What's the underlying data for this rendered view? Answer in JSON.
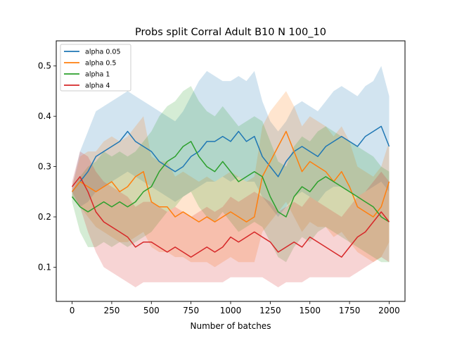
{
  "chart_data": {
    "type": "line",
    "title": "Probs split Corral Adult B10 N 100_10",
    "xlabel": "Number of batches",
    "ylabel": "",
    "xlim": [
      -100,
      2100
    ],
    "ylim": [
      0.032,
      0.55
    ],
    "xticks": [
      0,
      250,
      500,
      750,
      1000,
      1250,
      1500,
      1750,
      2000
    ],
    "xtick_labels": [
      "0",
      "250",
      "500",
      "750",
      "1000",
      "1250",
      "1500",
      "1750",
      "2000"
    ],
    "yticks": [
      0.1,
      0.2,
      0.3,
      0.4,
      0.5
    ],
    "ytick_labels": [
      "0.1",
      "0.2",
      "0.3",
      "0.4",
      "0.5"
    ],
    "grid": false,
    "legend_position": "top-left",
    "band": "shaded range around each series",
    "series": [
      {
        "name": "alpha 0.05",
        "color": "#1f77b4",
        "x": [
          0,
          50,
          100,
          150,
          200,
          250,
          300,
          350,
          400,
          450,
          500,
          550,
          600,
          650,
          700,
          750,
          800,
          850,
          900,
          950,
          1000,
          1050,
          1100,
          1150,
          1200,
          1250,
          1300,
          1350,
          1400,
          1450,
          1500,
          1550,
          1600,
          1650,
          1700,
          1750,
          1800,
          1850,
          1900,
          1950,
          2000
        ],
        "values": [
          0.25,
          0.27,
          0.29,
          0.32,
          0.33,
          0.34,
          0.35,
          0.37,
          0.35,
          0.34,
          0.33,
          0.31,
          0.3,
          0.29,
          0.3,
          0.32,
          0.33,
          0.35,
          0.35,
          0.36,
          0.35,
          0.37,
          0.35,
          0.36,
          0.32,
          0.3,
          0.28,
          0.31,
          0.33,
          0.34,
          0.33,
          0.32,
          0.34,
          0.35,
          0.36,
          0.35,
          0.34,
          0.36,
          0.37,
          0.38,
          0.34
        ],
        "lower": [
          0.24,
          0.22,
          0.23,
          0.25,
          0.26,
          0.27,
          0.28,
          0.29,
          0.28,
          0.27,
          0.26,
          0.25,
          0.24,
          0.23,
          0.24,
          0.25,
          0.26,
          0.27,
          0.27,
          0.28,
          0.27,
          0.28,
          0.27,
          0.27,
          0.24,
          0.22,
          0.2,
          0.22,
          0.24,
          0.25,
          0.24,
          0.23,
          0.25,
          0.26,
          0.26,
          0.25,
          0.24,
          0.25,
          0.26,
          0.27,
          0.25
        ],
        "upper": [
          0.26,
          0.33,
          0.37,
          0.41,
          0.42,
          0.43,
          0.44,
          0.45,
          0.44,
          0.43,
          0.42,
          0.41,
          0.4,
          0.39,
          0.41,
          0.44,
          0.47,
          0.49,
          0.48,
          0.47,
          0.47,
          0.48,
          0.47,
          0.49,
          0.43,
          0.39,
          0.37,
          0.39,
          0.42,
          0.43,
          0.42,
          0.41,
          0.43,
          0.45,
          0.46,
          0.45,
          0.44,
          0.46,
          0.47,
          0.5,
          0.44
        ]
      },
      {
        "name": "alpha 0.5",
        "color": "#ff7f0e",
        "x": [
          0,
          50,
          100,
          150,
          200,
          250,
          300,
          350,
          400,
          450,
          500,
          550,
          600,
          650,
          700,
          750,
          800,
          850,
          900,
          950,
          1000,
          1050,
          1100,
          1150,
          1200,
          1250,
          1300,
          1350,
          1400,
          1450,
          1500,
          1550,
          1600,
          1650,
          1700,
          1750,
          1800,
          1850,
          1900,
          1950,
          2000
        ],
        "values": [
          0.25,
          0.27,
          0.26,
          0.25,
          0.26,
          0.27,
          0.25,
          0.26,
          0.28,
          0.29,
          0.23,
          0.22,
          0.22,
          0.2,
          0.21,
          0.2,
          0.19,
          0.2,
          0.19,
          0.2,
          0.21,
          0.2,
          0.19,
          0.2,
          0.28,
          0.31,
          0.34,
          0.37,
          0.33,
          0.29,
          0.31,
          0.3,
          0.29,
          0.27,
          0.29,
          0.26,
          0.22,
          0.21,
          0.2,
          0.22,
          0.27
        ],
        "lower": [
          0.24,
          0.22,
          0.2,
          0.18,
          0.17,
          0.16,
          0.15,
          0.15,
          0.16,
          0.17,
          0.14,
          0.13,
          0.13,
          0.12,
          0.12,
          0.11,
          0.11,
          0.11,
          0.1,
          0.11,
          0.12,
          0.11,
          0.11,
          0.11,
          0.17,
          0.19,
          0.21,
          0.23,
          0.2,
          0.17,
          0.19,
          0.18,
          0.18,
          0.16,
          0.17,
          0.15,
          0.13,
          0.12,
          0.11,
          0.12,
          0.15
        ],
        "upper": [
          0.26,
          0.32,
          0.33,
          0.33,
          0.35,
          0.36,
          0.35,
          0.36,
          0.38,
          0.4,
          0.32,
          0.31,
          0.31,
          0.28,
          0.29,
          0.28,
          0.27,
          0.28,
          0.27,
          0.28,
          0.29,
          0.28,
          0.27,
          0.28,
          0.38,
          0.41,
          0.43,
          0.45,
          0.42,
          0.38,
          0.4,
          0.39,
          0.38,
          0.36,
          0.38,
          0.35,
          0.3,
          0.29,
          0.28,
          0.3,
          0.35
        ]
      },
      {
        "name": "alpha 1",
        "color": "#2ca02c",
        "x": [
          0,
          50,
          100,
          150,
          200,
          250,
          300,
          350,
          400,
          450,
          500,
          550,
          600,
          650,
          700,
          750,
          800,
          850,
          900,
          950,
          1000,
          1050,
          1100,
          1150,
          1200,
          1250,
          1300,
          1350,
          1400,
          1450,
          1500,
          1550,
          1600,
          1650,
          1700,
          1750,
          1800,
          1850,
          1900,
          1950,
          2000
        ],
        "values": [
          0.24,
          0.22,
          0.21,
          0.22,
          0.23,
          0.22,
          0.23,
          0.22,
          0.23,
          0.25,
          0.26,
          0.29,
          0.31,
          0.32,
          0.34,
          0.35,
          0.32,
          0.3,
          0.29,
          0.31,
          0.29,
          0.27,
          0.28,
          0.29,
          0.28,
          0.24,
          0.21,
          0.2,
          0.24,
          0.26,
          0.25,
          0.27,
          0.28,
          0.27,
          0.26,
          0.25,
          0.24,
          0.23,
          0.22,
          0.2,
          0.19
        ],
        "lower": [
          0.23,
          0.17,
          0.14,
          0.14,
          0.15,
          0.14,
          0.15,
          0.14,
          0.15,
          0.16,
          0.17,
          0.19,
          0.21,
          0.22,
          0.24,
          0.25,
          0.22,
          0.2,
          0.19,
          0.21,
          0.19,
          0.17,
          0.18,
          0.19,
          0.18,
          0.15,
          0.12,
          0.11,
          0.14,
          0.16,
          0.15,
          0.17,
          0.18,
          0.17,
          0.16,
          0.15,
          0.14,
          0.13,
          0.12,
          0.11,
          0.11
        ],
        "upper": [
          0.25,
          0.28,
          0.3,
          0.31,
          0.33,
          0.32,
          0.33,
          0.32,
          0.33,
          0.35,
          0.37,
          0.4,
          0.42,
          0.43,
          0.45,
          0.46,
          0.43,
          0.41,
          0.4,
          0.42,
          0.4,
          0.38,
          0.39,
          0.4,
          0.39,
          0.35,
          0.31,
          0.3,
          0.34,
          0.36,
          0.35,
          0.37,
          0.38,
          0.37,
          0.36,
          0.35,
          0.34,
          0.33,
          0.32,
          0.3,
          0.29
        ]
      },
      {
        "name": "alpha 4",
        "color": "#d62728",
        "x": [
          0,
          50,
          100,
          150,
          200,
          250,
          300,
          350,
          400,
          450,
          500,
          550,
          600,
          650,
          700,
          750,
          800,
          850,
          900,
          950,
          1000,
          1050,
          1100,
          1150,
          1200,
          1250,
          1300,
          1350,
          1400,
          1450,
          1500,
          1550,
          1600,
          1650,
          1700,
          1750,
          1800,
          1850,
          1900,
          1950,
          2000
        ],
        "values": [
          0.26,
          0.28,
          0.25,
          0.21,
          0.19,
          0.18,
          0.17,
          0.16,
          0.14,
          0.15,
          0.15,
          0.14,
          0.13,
          0.14,
          0.13,
          0.12,
          0.13,
          0.14,
          0.13,
          0.14,
          0.16,
          0.15,
          0.16,
          0.17,
          0.16,
          0.15,
          0.13,
          0.14,
          0.15,
          0.14,
          0.16,
          0.15,
          0.14,
          0.13,
          0.12,
          0.14,
          0.16,
          0.17,
          0.19,
          0.21,
          0.19
        ],
        "lower": [
          0.25,
          0.22,
          0.17,
          0.13,
          0.1,
          0.09,
          0.08,
          0.07,
          0.06,
          0.07,
          0.07,
          0.07,
          0.07,
          0.07,
          0.07,
          0.07,
          0.07,
          0.07,
          0.07,
          0.07,
          0.08,
          0.08,
          0.08,
          0.08,
          0.08,
          0.07,
          0.06,
          0.07,
          0.07,
          0.07,
          0.08,
          0.08,
          0.08,
          0.08,
          0.08,
          0.08,
          0.09,
          0.1,
          0.11,
          0.12,
          0.11
        ],
        "upper": [
          0.27,
          0.33,
          0.32,
          0.29,
          0.27,
          0.26,
          0.25,
          0.24,
          0.22,
          0.23,
          0.23,
          0.22,
          0.21,
          0.22,
          0.21,
          0.2,
          0.21,
          0.22,
          0.21,
          0.22,
          0.24,
          0.23,
          0.24,
          0.25,
          0.24,
          0.23,
          0.21,
          0.22,
          0.23,
          0.22,
          0.24,
          0.23,
          0.22,
          0.21,
          0.2,
          0.22,
          0.24,
          0.25,
          0.27,
          0.29,
          0.27
        ]
      }
    ]
  }
}
